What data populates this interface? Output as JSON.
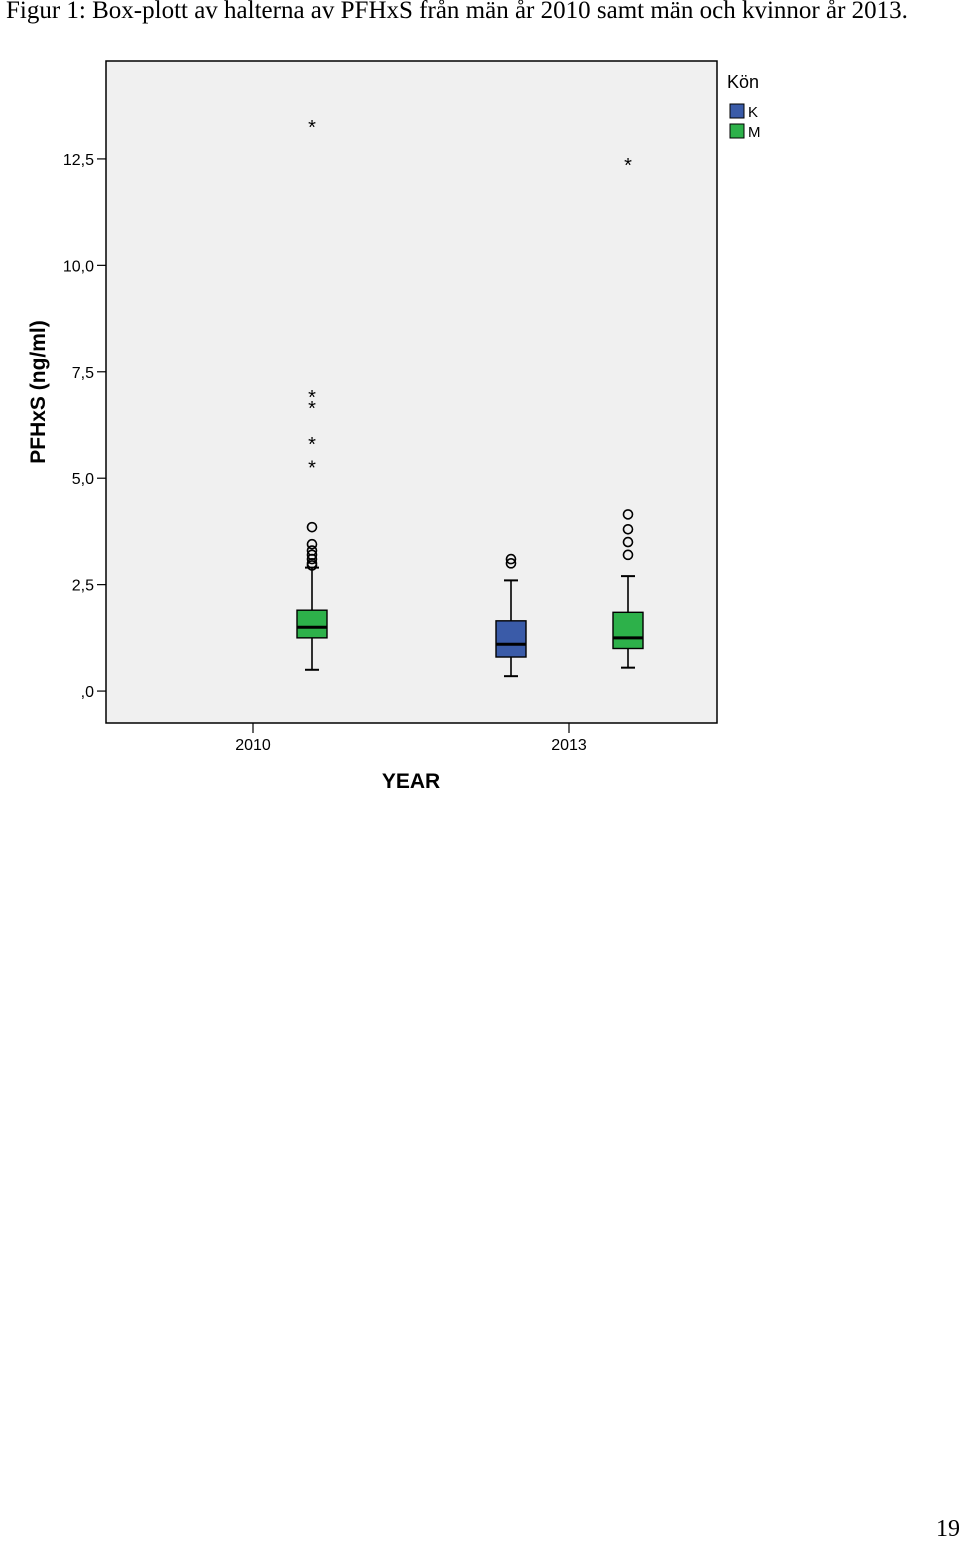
{
  "document": {
    "caption": "Figur 1: Box-plott av halterna av PFHxS från män år 2010 samt män och kvinnor år 2013.",
    "page_number": "19"
  },
  "chart_data": {
    "type": "boxplot",
    "xlabel": "YEAR",
    "ylabel": "PFHxS (ng/ml)",
    "categories": [
      "2010",
      "2013"
    ],
    "ylim": [
      -0.75,
      14.8
    ],
    "yticks": [
      0,
      2.5,
      5,
      7.5,
      10,
      12.5
    ],
    "ytick_labels": [
      ",0",
      "2,5",
      "5,0",
      "7,5",
      "10,0",
      "12,5"
    ],
    "grid": false,
    "plot_background": "#f0f0f0",
    "legend": {
      "title": "Kön",
      "position": "top-right-outside",
      "entries": [
        {
          "label": "K",
          "color": "#3a5ba8"
        },
        {
          "label": "M",
          "color": "#2db14a"
        }
      ]
    },
    "boxes": [
      {
        "category": "2010",
        "group": "M",
        "color": "#2db14a",
        "whisker_low": 0.5,
        "q1": 1.25,
        "median": 1.5,
        "q3": 1.9,
        "whisker_high": 2.9,
        "outliers": [
          2.95,
          3.0,
          3.1,
          3.2,
          3.3,
          3.45,
          3.85
        ],
        "extremes": [
          5.3,
          5.85,
          6.7,
          6.95,
          13.3
        ]
      },
      {
        "category": "2013",
        "group": "K",
        "color": "#3a5ba8",
        "whisker_low": 0.35,
        "q1": 0.8,
        "median": 1.1,
        "q3": 1.65,
        "whisker_high": 2.6,
        "outliers": [
          3.0,
          3.1
        ],
        "extremes": []
      },
      {
        "category": "2013",
        "group": "M",
        "color": "#2db14a",
        "whisker_low": 0.55,
        "q1": 1.0,
        "median": 1.25,
        "q3": 1.85,
        "whisker_high": 2.7,
        "outliers": [
          3.2,
          3.5,
          3.8,
          4.15
        ],
        "extremes": [
          12.4
        ]
      }
    ]
  }
}
